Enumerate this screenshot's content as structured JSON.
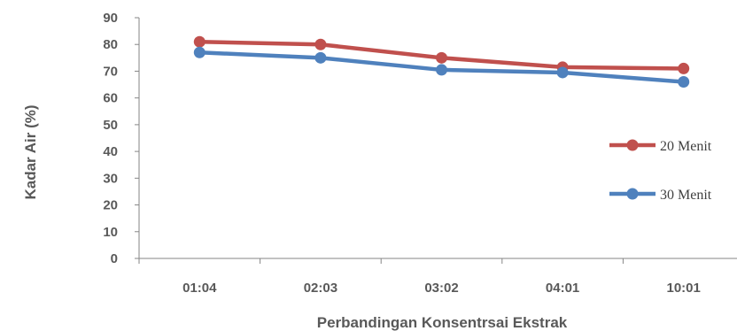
{
  "chart_data": {
    "type": "line",
    "title": "",
    "xlabel": "Perbandingan Konsentrsai Ekstrak",
    "ylabel": "Kadar Air (%)",
    "categories": [
      "01:04",
      "02:03",
      "03:02",
      "04:01",
      "10:01"
    ],
    "ylim": [
      0,
      90
    ],
    "yticks": [
      "0",
      "10",
      "20",
      "30",
      "40",
      "50",
      "60",
      "70",
      "80",
      "90"
    ],
    "grid": false,
    "legend_position": "right",
    "series": [
      {
        "name": "20 Menit",
        "color": "#c0504d",
        "values": [
          81,
          80,
          75,
          71.5,
          71
        ]
      },
      {
        "name": "30 Menit",
        "color": "#4f81bd",
        "values": [
          77,
          75,
          70.5,
          69.5,
          66
        ]
      }
    ]
  }
}
